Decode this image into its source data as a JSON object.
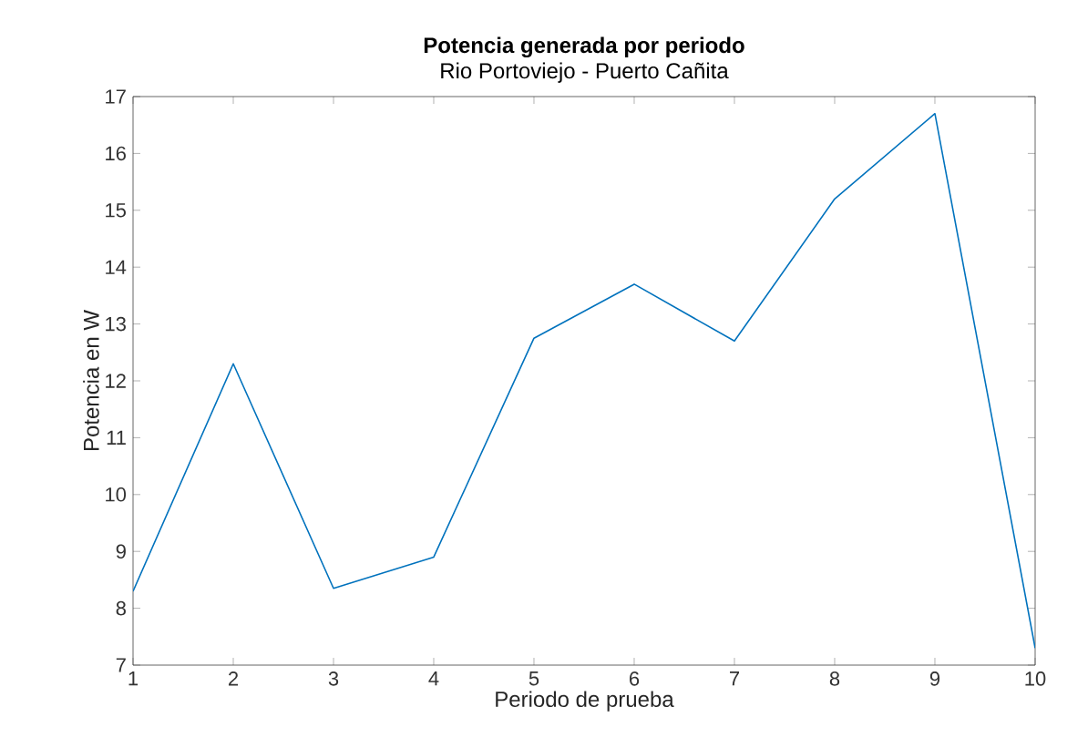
{
  "chart_data": {
    "type": "line",
    "title": "Potencia generada por periodo",
    "subtitle": "Rio Portoviejo - Puerto Cañita",
    "xlabel": "Periodo de prueba",
    "ylabel": "Potencia en W",
    "x": [
      1,
      2,
      3,
      4,
      5,
      6,
      7,
      8,
      9,
      10
    ],
    "values": [
      8.3,
      12.3,
      8.35,
      8.9,
      12.75,
      13.7,
      12.7,
      15.2,
      16.7,
      7.3
    ],
    "color": "#0072bd",
    "xlim": [
      1,
      10
    ],
    "ylim": [
      7,
      17
    ],
    "xticks": [
      1,
      2,
      3,
      4,
      5,
      6,
      7,
      8,
      9,
      10
    ],
    "yticks": [
      7,
      8,
      9,
      10,
      11,
      12,
      13,
      14,
      15,
      16,
      17
    ]
  }
}
